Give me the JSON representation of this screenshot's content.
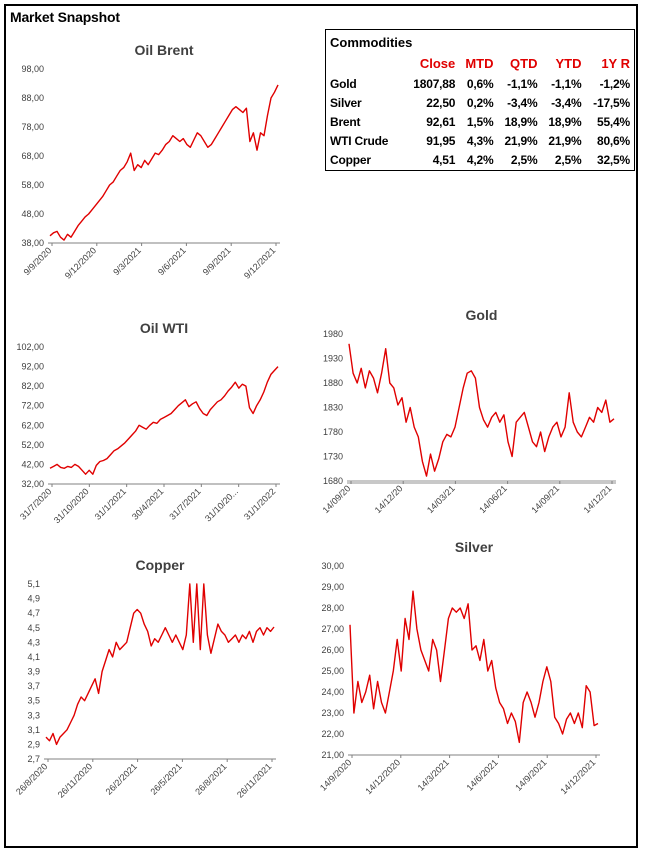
{
  "page_title": "Market Snapshot",
  "colors": {
    "series": "#e00000",
    "axis": "#808080",
    "text": "#404040"
  },
  "table": {
    "title": "Commodities",
    "headers": [
      "Close",
      "MTD",
      "QTD",
      "YTD",
      "1Y R"
    ],
    "rows": [
      {
        "name": "Gold",
        "values": [
          "1807,88",
          "0,6%",
          "-1,1%",
          "-1,1%",
          "-1,2%"
        ]
      },
      {
        "name": "Silver",
        "values": [
          "22,50",
          "0,2%",
          "-3,4%",
          "-3,4%",
          "-17,5%"
        ]
      },
      {
        "name": "Brent",
        "values": [
          "92,61",
          "1,5%",
          "18,9%",
          "18,9%",
          "55,4%"
        ]
      },
      {
        "name": "WTI Crude",
        "values": [
          "91,95",
          "4,3%",
          "21,9%",
          "21,9%",
          "80,6%"
        ]
      },
      {
        "name": "Copper",
        "values": [
          "4,51",
          "4,2%",
          "2,5%",
          "2,5%",
          "32,5%"
        ]
      }
    ]
  },
  "chart_data": [
    {
      "id": "brent",
      "type": "line",
      "title": "Oil Brent",
      "xlabel": "",
      "ylabel": "",
      "ylim": [
        38,
        98
      ],
      "yticks": [
        "98,00",
        "88,00",
        "78,00",
        "68,00",
        "58,00",
        "48,00",
        "38,00"
      ],
      "xticks": [
        "9/9/2020",
        "9/12/2020",
        "9/3/2021",
        "9/6/2021",
        "9/9/2021",
        "9/12/2021"
      ],
      "grid": false,
      "series": [
        {
          "values": [
            40.5,
            41.5,
            42,
            40,
            39,
            41,
            40,
            42,
            44,
            45.5,
            47,
            48,
            49.5,
            51,
            52.5,
            54,
            56,
            58,
            59,
            61,
            63,
            64,
            66,
            69,
            63,
            65,
            64,
            66.5,
            65,
            67,
            69,
            68.5,
            70,
            72,
            73,
            75,
            74,
            73,
            74,
            72,
            71,
            73.5,
            76,
            75,
            73,
            71,
            72,
            74,
            76,
            78,
            80,
            82,
            84,
            85,
            84,
            83,
            84.5,
            73,
            76,
            70,
            76,
            75,
            82,
            88,
            90,
            92.5
          ]
        }
      ]
    },
    {
      "id": "wti",
      "type": "line",
      "title": "Oil WTI",
      "xlabel": "",
      "ylabel": "",
      "ylim": [
        32,
        102
      ],
      "yticks": [
        "102,00",
        "92,00",
        "82,00",
        "72,00",
        "62,00",
        "52,00",
        "42,00",
        "32,00"
      ],
      "xticks": [
        "31/7/2020",
        "31/10/2020",
        "31/1/2021",
        "30/4/2021",
        "31/7/2021",
        "31/10/20...",
        "31/1/2022"
      ],
      "grid": false,
      "series": [
        {
          "values": [
            40,
            41,
            42,
            40.5,
            40,
            41,
            40.5,
            42,
            41,
            39,
            37,
            39,
            37,
            41.5,
            43.5,
            44,
            45,
            47,
            49,
            50,
            51.5,
            53,
            55,
            57,
            59,
            62,
            61,
            60,
            62,
            63.5,
            63,
            65,
            66,
            67,
            68,
            70,
            72,
            73.5,
            75,
            71.5,
            73,
            74,
            70.5,
            68,
            67,
            70,
            72,
            74,
            75,
            77,
            79.5,
            81.5,
            84,
            81,
            83,
            82,
            71,
            68,
            72,
            75,
            79,
            84,
            88,
            90,
            92
          ]
        }
      ]
    },
    {
      "id": "gold",
      "type": "line",
      "title": "Gold",
      "xlabel": "",
      "ylabel": "",
      "ylim": [
        1680,
        1980
      ],
      "yticks": [
        "1980",
        "1930",
        "1880",
        "1830",
        "1780",
        "1730",
        "1680"
      ],
      "xticks": [
        "14/09/20",
        "14/12/20",
        "14/03/21",
        "14/06/21",
        "14/09/21",
        "14/12/21"
      ],
      "grid": false,
      "series": [
        {
          "values": [
            1960,
            1900,
            1880,
            1910,
            1870,
            1905,
            1890,
            1860,
            1900,
            1950,
            1880,
            1870,
            1835,
            1850,
            1800,
            1830,
            1790,
            1770,
            1720,
            1690,
            1735,
            1700,
            1725,
            1760,
            1775,
            1770,
            1790,
            1830,
            1870,
            1900,
            1905,
            1890,
            1830,
            1805,
            1790,
            1810,
            1820,
            1800,
            1815,
            1760,
            1730,
            1800,
            1810,
            1820,
            1790,
            1760,
            1750,
            1780,
            1740,
            1770,
            1790,
            1800,
            1770,
            1790,
            1860,
            1800,
            1780,
            1770,
            1790,
            1810,
            1800,
            1830,
            1820,
            1845,
            1800,
            1807
          ]
        }
      ]
    },
    {
      "id": "copper",
      "type": "line",
      "title": "Copper",
      "xlabel": "",
      "ylabel": "",
      "ylim": [
        2.7,
        5.1
      ],
      "yticks": [
        "5,1",
        "4,9",
        "4,7",
        "4,5",
        "4,3",
        "4,1",
        "3,9",
        "3,7",
        "3,5",
        "3,3",
        "3,1",
        "2,9",
        "2,7"
      ],
      "xticks": [
        "26/8/2020",
        "26/11/2020",
        "26/2/2021",
        "26/5/2021",
        "26/8/2021",
        "26/11/2021"
      ],
      "grid": false,
      "series": [
        {
          "values": [
            3.0,
            2.95,
            3.05,
            2.9,
            3.0,
            3.05,
            3.1,
            3.2,
            3.3,
            3.45,
            3.55,
            3.5,
            3.6,
            3.7,
            3.8,
            3.6,
            3.9,
            4.05,
            4.2,
            4.1,
            4.3,
            4.2,
            4.25,
            4.3,
            4.5,
            4.7,
            4.75,
            4.7,
            4.55,
            4.45,
            4.25,
            4.35,
            4.3,
            4.4,
            4.5,
            4.4,
            4.3,
            4.4,
            4.3,
            4.2,
            4.4,
            5.1,
            4.3,
            5.1,
            4.2,
            5.1,
            4.4,
            4.15,
            4.35,
            4.55,
            4.45,
            4.4,
            4.3,
            4.35,
            4.4,
            4.3,
            4.4,
            4.35,
            4.45,
            4.3,
            4.45,
            4.5,
            4.4,
            4.5,
            4.45,
            4.51
          ]
        }
      ]
    },
    {
      "id": "silver",
      "type": "line",
      "title": "Silver",
      "xlabel": "",
      "ylabel": "",
      "ylim": [
        21,
        30
      ],
      "yticks": [
        "30,00",
        "29,00",
        "28,00",
        "27,00",
        "26,00",
        "25,00",
        "24,00",
        "23,00",
        "22,00",
        "21,00"
      ],
      "xticks": [
        "14/9/2020",
        "14/12/2020",
        "14/3/2021",
        "14/6/2021",
        "14/9/2021",
        "14/12/2021"
      ],
      "grid": false,
      "series": [
        {
          "values": [
            27.2,
            23,
            24.5,
            23.5,
            24,
            24.8,
            23.2,
            24.5,
            23.5,
            23,
            24,
            25,
            26.5,
            25,
            27.5,
            26.5,
            28.8,
            27,
            26,
            25.5,
            25,
            26.5,
            26,
            24.5,
            26,
            27.5,
            28,
            27.8,
            28,
            27.5,
            28.2,
            26,
            26.2,
            25.5,
            26.5,
            25,
            25.5,
            24.2,
            23.5,
            23.2,
            22.5,
            23,
            22.6,
            21.6,
            23.5,
            24,
            23.5,
            22.8,
            23.5,
            24.5,
            25.2,
            24.5,
            22.8,
            22.5,
            22,
            22.7,
            23,
            22.5,
            23,
            22.3,
            24.3,
            24,
            22.4,
            22.5
          ]
        }
      ]
    }
  ]
}
